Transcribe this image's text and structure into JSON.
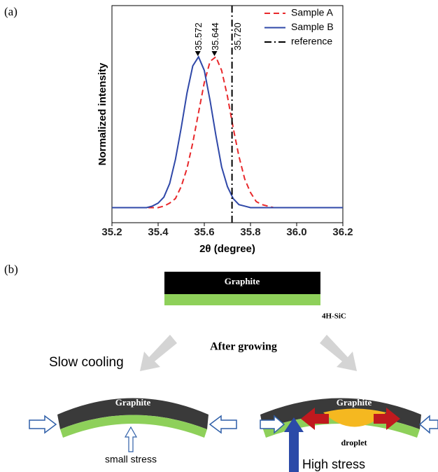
{
  "chart_data": {
    "type": "line",
    "x_label": "2θ (degree)",
    "y_label": "Normalized intensity",
    "x": [
      35.2,
      35.3,
      35.35,
      35.375,
      35.4,
      35.425,
      35.45,
      35.475,
      35.5,
      35.525,
      35.55,
      35.575,
      35.6,
      35.625,
      35.65,
      35.675,
      35.7,
      35.725,
      35.75,
      35.775,
      35.8,
      35.825,
      35.85,
      35.9,
      35.95,
      36.0,
      36.2
    ],
    "series": [
      {
        "name": "Sample A",
        "color": "#e8282b",
        "line_style": "dashed",
        "values": [
          0,
          0,
          0,
          0,
          0,
          0.01,
          0.03,
          0.06,
          0.14,
          0.26,
          0.43,
          0.63,
          0.83,
          0.97,
          1.0,
          0.91,
          0.74,
          0.53,
          0.34,
          0.19,
          0.1,
          0.04,
          0.02,
          0,
          0,
          0,
          0
        ]
      },
      {
        "name": "Sample B",
        "color": "#2f48a8",
        "line_style": "solid",
        "values": [
          0,
          0,
          0,
          0.01,
          0.03,
          0.07,
          0.16,
          0.32,
          0.53,
          0.76,
          0.94,
          1.0,
          0.91,
          0.71,
          0.48,
          0.27,
          0.14,
          0.06,
          0.02,
          0.01,
          0,
          0,
          0,
          0,
          0,
          0,
          0
        ]
      }
    ],
    "reference": {
      "name": "reference",
      "x": 35.72,
      "color": "#000000",
      "line_style": "dashdot"
    },
    "annotations": [
      {
        "text": "35.572",
        "x": 35.572,
        "arrow": true
      },
      {
        "text": "35.644",
        "x": 35.644,
        "arrow": true
      },
      {
        "text": "35.720",
        "x": 35.72,
        "arrow": false
      }
    ],
    "xlim": [
      35.2,
      36.2
    ],
    "ylim": [
      -0.1,
      1.34
    ],
    "xticks": [
      35.2,
      35.4,
      35.6,
      35.8,
      {
        "value": 36,
        "label": "36.0"
      },
      36.2
    ],
    "legend": "upper right"
  },
  "figure": {
    "panel_labels": [
      "(a)",
      "(b)"
    ],
    "before": {
      "layer_top": "Graphite",
      "layer_bottom": "4H-SiC"
    },
    "process": "After growing",
    "left_branch": {
      "title": "Slow cooling",
      "layer": "Graphite",
      "stress": "small stress"
    },
    "right_branch": {
      "layer": "Graphite",
      "inclusion": "droplet",
      "stress": "High stress"
    }
  }
}
